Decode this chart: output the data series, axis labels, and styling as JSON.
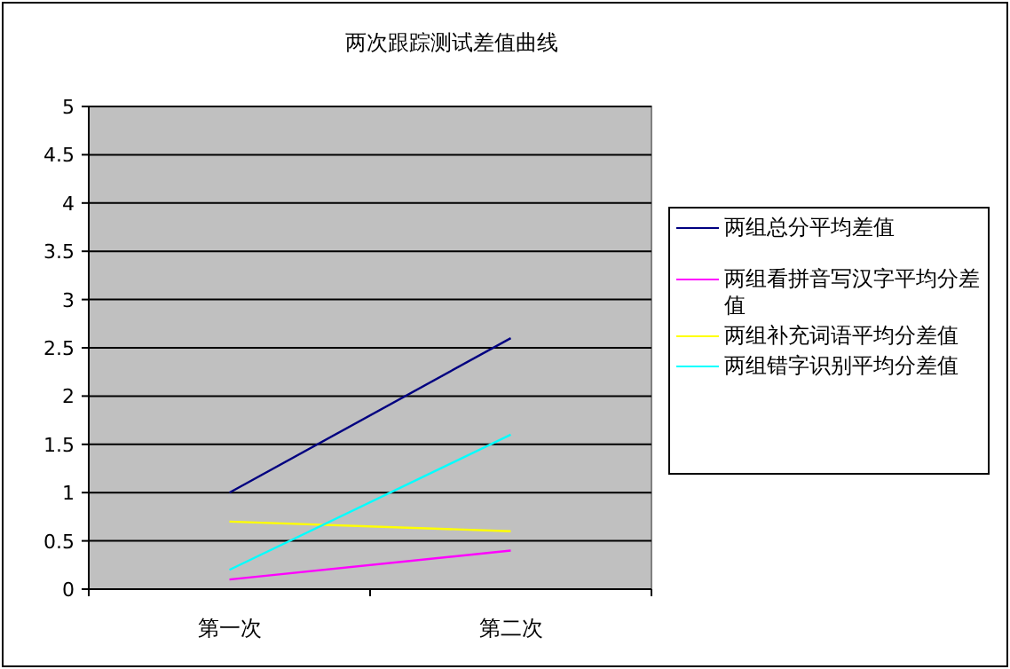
{
  "chart_data": {
    "type": "line",
    "title": "两次跟踪测试差值曲线",
    "categories": [
      "第一次",
      "第二次"
    ],
    "series": [
      {
        "name": "两组总分平均差值",
        "color": "#000080",
        "values": [
          1.0,
          2.6
        ]
      },
      {
        "name": "两组看拼音写汉字平均分差值",
        "color": "#ff00ff",
        "values": [
          0.1,
          0.4
        ]
      },
      {
        "name": "两组补充词语平均分差值",
        "color": "#ffff00",
        "values": [
          0.7,
          0.6
        ]
      },
      {
        "name": "两组错字识别平均分差值",
        "color": "#00ffff",
        "values": [
          0.2,
          1.6
        ]
      }
    ],
    "ylim": [
      0,
      5
    ],
    "yticks": [
      0,
      0.5,
      1,
      1.5,
      2,
      2.5,
      3,
      3.5,
      4,
      4.5,
      5
    ],
    "grid": "y",
    "legend": "right",
    "marker": "none",
    "line_style": "solid"
  }
}
